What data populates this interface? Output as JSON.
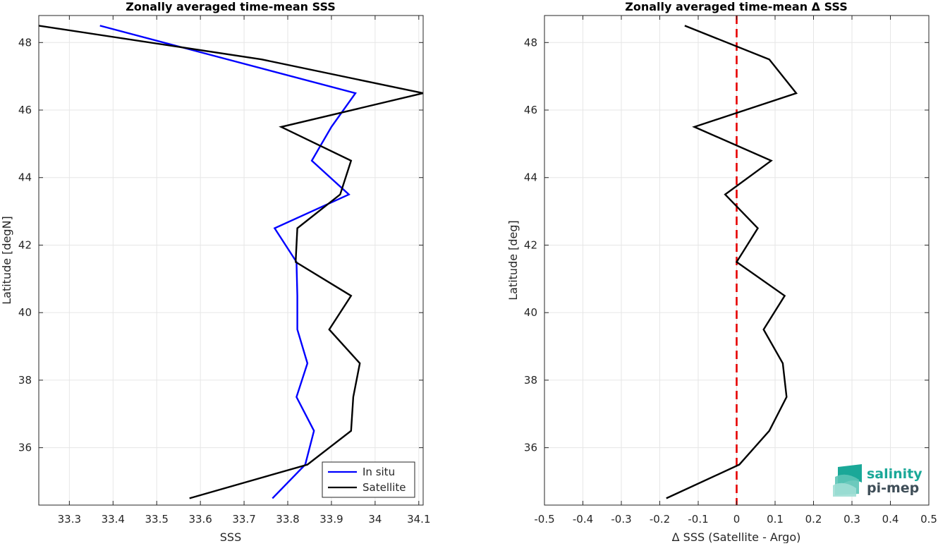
{
  "chart_data": [
    {
      "type": "line",
      "title": "Zonally averaged time-mean SSS",
      "xlabel": "SSS",
      "ylabel": "Latitude [degN]",
      "xlim": [
        33.23,
        34.11
      ],
      "ylim": [
        34.3,
        48.8
      ],
      "grid": true,
      "legend": "bottom-right",
      "xticks": [
        33.3,
        33.4,
        33.5,
        33.6,
        33.7,
        33.8,
        33.9,
        34,
        34.1
      ],
      "xtick_labels": [
        "33.3",
        "33.4",
        "33.5",
        "33.6",
        "33.7",
        "33.8",
        "33.9",
        "34",
        "34.1"
      ],
      "yticks": [
        36,
        38,
        40,
        42,
        44,
        46,
        48
      ],
      "ytick_labels": [
        "36",
        "38",
        "40",
        "42",
        "44",
        "46",
        "48"
      ],
      "series": [
        {
          "name": "In situ",
          "color": "#0000ff",
          "x": [
            33.765,
            33.84,
            33.86,
            33.82,
            33.845,
            33.822,
            33.822,
            33.82,
            33.77,
            33.94,
            33.855,
            33.9,
            33.955,
            33.37
          ],
          "y": [
            34.5,
            35.5,
            36.5,
            37.5,
            38.5,
            39.5,
            40.5,
            41.5,
            42.5,
            43.5,
            44.5,
            45.5,
            46.5,
            48.5
          ]
        },
        {
          "name": "Satellite",
          "color": "#000000",
          "x": [
            33.575,
            33.845,
            33.945,
            33.95,
            33.965,
            33.895,
            33.945,
            33.818,
            33.822,
            33.92,
            33.945,
            33.785,
            34.11,
            33.74,
            33.23
          ],
          "y": [
            34.5,
            35.5,
            36.5,
            37.5,
            38.5,
            39.5,
            40.5,
            41.5,
            42.5,
            43.5,
            44.5,
            45.5,
            46.5,
            47.5,
            48.5
          ]
        }
      ]
    },
    {
      "type": "line",
      "title": "Zonally averaged time-mean Δ SSS",
      "xlabel": "Δ SSS (Satellite - Argo)",
      "ylabel": "Latitude [deg]",
      "xlim": [
        -0.5,
        0.5
      ],
      "ylim": [
        34.3,
        48.8
      ],
      "grid": true,
      "xticks": [
        -0.5,
        -0.4,
        -0.3,
        -0.2,
        -0.1,
        0,
        0.1,
        0.2,
        0.3,
        0.4,
        0.5
      ],
      "xtick_labels": [
        "-0.5",
        "-0.4",
        "-0.3",
        "-0.2",
        "-0.1",
        "0",
        "0.1",
        "0.2",
        "0.3",
        "0.4",
        "0.5"
      ],
      "yticks": [
        36,
        38,
        40,
        42,
        44,
        46,
        48
      ],
      "ytick_labels": [
        "36",
        "38",
        "40",
        "42",
        "44",
        "46",
        "48"
      ],
      "series": [
        {
          "color": "#000000",
          "x": [
            -0.183,
            0.007,
            0.085,
            0.13,
            0.12,
            0.07,
            0.125,
            0.0,
            0.055,
            -0.03,
            0.09,
            -0.11,
            0.155,
            0.085,
            -0.135
          ],
          "y": [
            34.5,
            35.5,
            36.5,
            37.5,
            38.5,
            39.5,
            40.5,
            41.5,
            42.5,
            43.5,
            44.5,
            45.5,
            46.5,
            47.5,
            48.5
          ]
        }
      ],
      "reference_line": {
        "x": 0,
        "color": "#e60000",
        "style": "dashed"
      }
    }
  ],
  "logo": {
    "line1": "salinity",
    "line2": "pi-mep",
    "color": "#1aa898"
  }
}
